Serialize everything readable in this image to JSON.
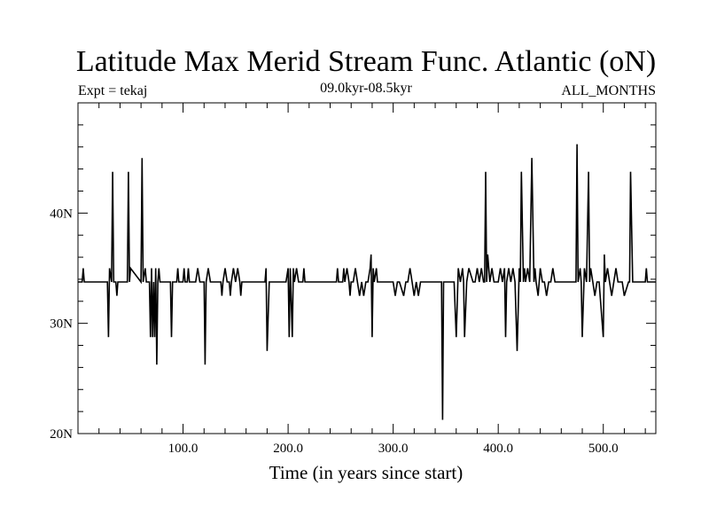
{
  "chart_data": {
    "type": "line",
    "title": "Latitude Max Merid Stream Func. Atlantic (oN)",
    "subtitle_left": "Expt = tekaj",
    "subtitle_center": "09.0kyr-08.5kyr",
    "subtitle_right": "ALL_MONTHS",
    "xlabel": "Time (in years since start)",
    "ylabel": "",
    "xlim": [
      0,
      550
    ],
    "ylim": [
      20,
      50
    ],
    "xticks": [
      100,
      200,
      300,
      400,
      500
    ],
    "xtick_labels": [
      "100.0",
      "200.0",
      "300.0",
      "400.0",
      "500.0"
    ],
    "yticks": [
      20,
      30,
      40
    ],
    "ytick_labels": [
      "20N",
      "30N",
      "40N"
    ],
    "baseline": 33.75,
    "series": [
      {
        "name": "",
        "color": "#000000",
        "x": [
          0,
          4,
          5,
          6,
          28,
          29,
          30,
          32,
          33,
          34,
          36,
          37,
          38,
          47,
          48,
          49,
          50,
          60,
          61,
          62,
          64,
          65,
          68,
          69,
          70,
          71,
          72,
          73,
          74,
          75,
          76,
          77,
          78,
          80,
          88,
          89,
          90,
          92,
          94,
          95,
          96,
          100,
          101,
          102,
          104,
          105,
          106,
          112,
          114,
          116,
          118,
          120,
          121,
          122,
          124,
          126,
          128,
          136,
          137,
          138,
          140,
          142,
          144,
          145,
          146,
          148,
          150,
          152,
          154,
          155,
          156,
          158,
          160,
          162,
          176,
          178,
          179,
          180,
          182,
          198,
          200,
          201,
          202,
          204,
          205,
          206,
          208,
          210,
          214,
          215,
          216,
          218,
          220,
          246,
          247,
          248,
          252,
          253,
          254,
          256,
          258,
          259,
          260,
          262,
          264,
          266,
          268,
          270,
          272,
          274,
          276,
          278,
          279,
          280,
          281,
          282,
          284,
          285,
          286,
          300,
          302,
          304,
          305,
          306,
          310,
          312,
          314,
          316,
          318,
          320,
          322,
          324,
          326,
          328,
          330,
          346,
          347,
          348,
          350,
          356,
          358,
          360,
          362,
          364,
          366,
          367,
          368,
          370,
          372,
          376,
          378,
          380,
          382,
          384,
          386,
          387,
          388,
          389,
          390,
          392,
          394,
          396,
          398,
          400,
          402,
          404,
          406,
          407,
          408,
          410,
          412,
          414,
          416,
          418,
          420,
          421,
          422,
          424,
          425,
          426,
          428,
          430,
          432,
          434,
          435,
          436,
          438,
          440,
          442,
          444,
          446,
          448,
          450,
          452,
          454,
          456,
          458,
          474,
          475,
          476,
          478,
          479,
          480,
          482,
          484,
          486,
          487,
          488,
          490,
          492,
          494,
          496,
          500,
          501,
          502,
          504,
          506,
          508,
          510,
          512,
          514,
          518,
          520,
          524,
          525,
          526,
          528,
          540,
          541,
          542,
          550
        ],
        "y": [
          33.75,
          33.75,
          35,
          33.75,
          33.75,
          28.75,
          35,
          33.75,
          43.75,
          33.75,
          33.75,
          32.5,
          33.75,
          33.75,
          43.75,
          33.75,
          35,
          33.75,
          45,
          33.75,
          35,
          33.75,
          33.75,
          28.75,
          35,
          28.75,
          33.75,
          28.75,
          35,
          26.25,
          33.75,
          35,
          33.75,
          33.75,
          33.75,
          28.75,
          33.75,
          33.75,
          33.75,
          35,
          33.75,
          33.75,
          35,
          33.75,
          33.75,
          35,
          33.75,
          33.75,
          35,
          33.75,
          33.75,
          33.75,
          26.25,
          33.75,
          35,
          33.75,
          33.75,
          33.75,
          32.5,
          33.75,
          35,
          33.75,
          33.75,
          32.5,
          33.75,
          35,
          33.75,
          35,
          33.75,
          32.5,
          33.75,
          33.75,
          33.75,
          33.75,
          33.75,
          33.75,
          35,
          27.5,
          33.75,
          33.75,
          35,
          28.75,
          35,
          28.75,
          35,
          33.75,
          35,
          33.75,
          33.75,
          35,
          33.75,
          33.75,
          33.75,
          33.75,
          35,
          33.75,
          33.75,
          35,
          33.75,
          35,
          33.75,
          32.5,
          33.75,
          33.75,
          35,
          33.75,
          32.5,
          33.75,
          32.5,
          33.75,
          33.75,
          35,
          36.25,
          28.75,
          35,
          33.75,
          35,
          33.75,
          33.75,
          33.75,
          32.5,
          33.75,
          33.75,
          33.75,
          32.5,
          33.75,
          33.75,
          35,
          33.75,
          32.5,
          33.75,
          32.5,
          33.75,
          33.75,
          33.75,
          33.75,
          21.25,
          33.75,
          33.75,
          33.75,
          33.75,
          28.75,
          35,
          33.75,
          35,
          33.75,
          28.75,
          33.75,
          35,
          33.75,
          33.75,
          35,
          33.75,
          35,
          33.75,
          33.75,
          43.75,
          33.75,
          36.25,
          33.75,
          35,
          33.75,
          33.75,
          33.75,
          35,
          33.75,
          35,
          28.75,
          33.75,
          35,
          33.75,
          35,
          33.75,
          27.5,
          35,
          33.75,
          43.75,
          33.75,
          35,
          33.75,
          35,
          33.75,
          45,
          33.75,
          35,
          33.75,
          32.5,
          35,
          33.75,
          33.75,
          32.5,
          33.75,
          33.75,
          35,
          33.75,
          33.75,
          33.75,
          33.75,
          46.25,
          33.75,
          35,
          33.75,
          28.75,
          35,
          33.75,
          43.75,
          33.75,
          35,
          33.75,
          32.5,
          33.75,
          33.75,
          28.75,
          36.25,
          33.75,
          35,
          33.75,
          32.5,
          33.75,
          35,
          33.75,
          33.75,
          32.5,
          33.75,
          33.75,
          43.75,
          33.75,
          33.75,
          35,
          33.75,
          33.75
        ]
      }
    ],
    "grid": false,
    "legend": "none"
  }
}
